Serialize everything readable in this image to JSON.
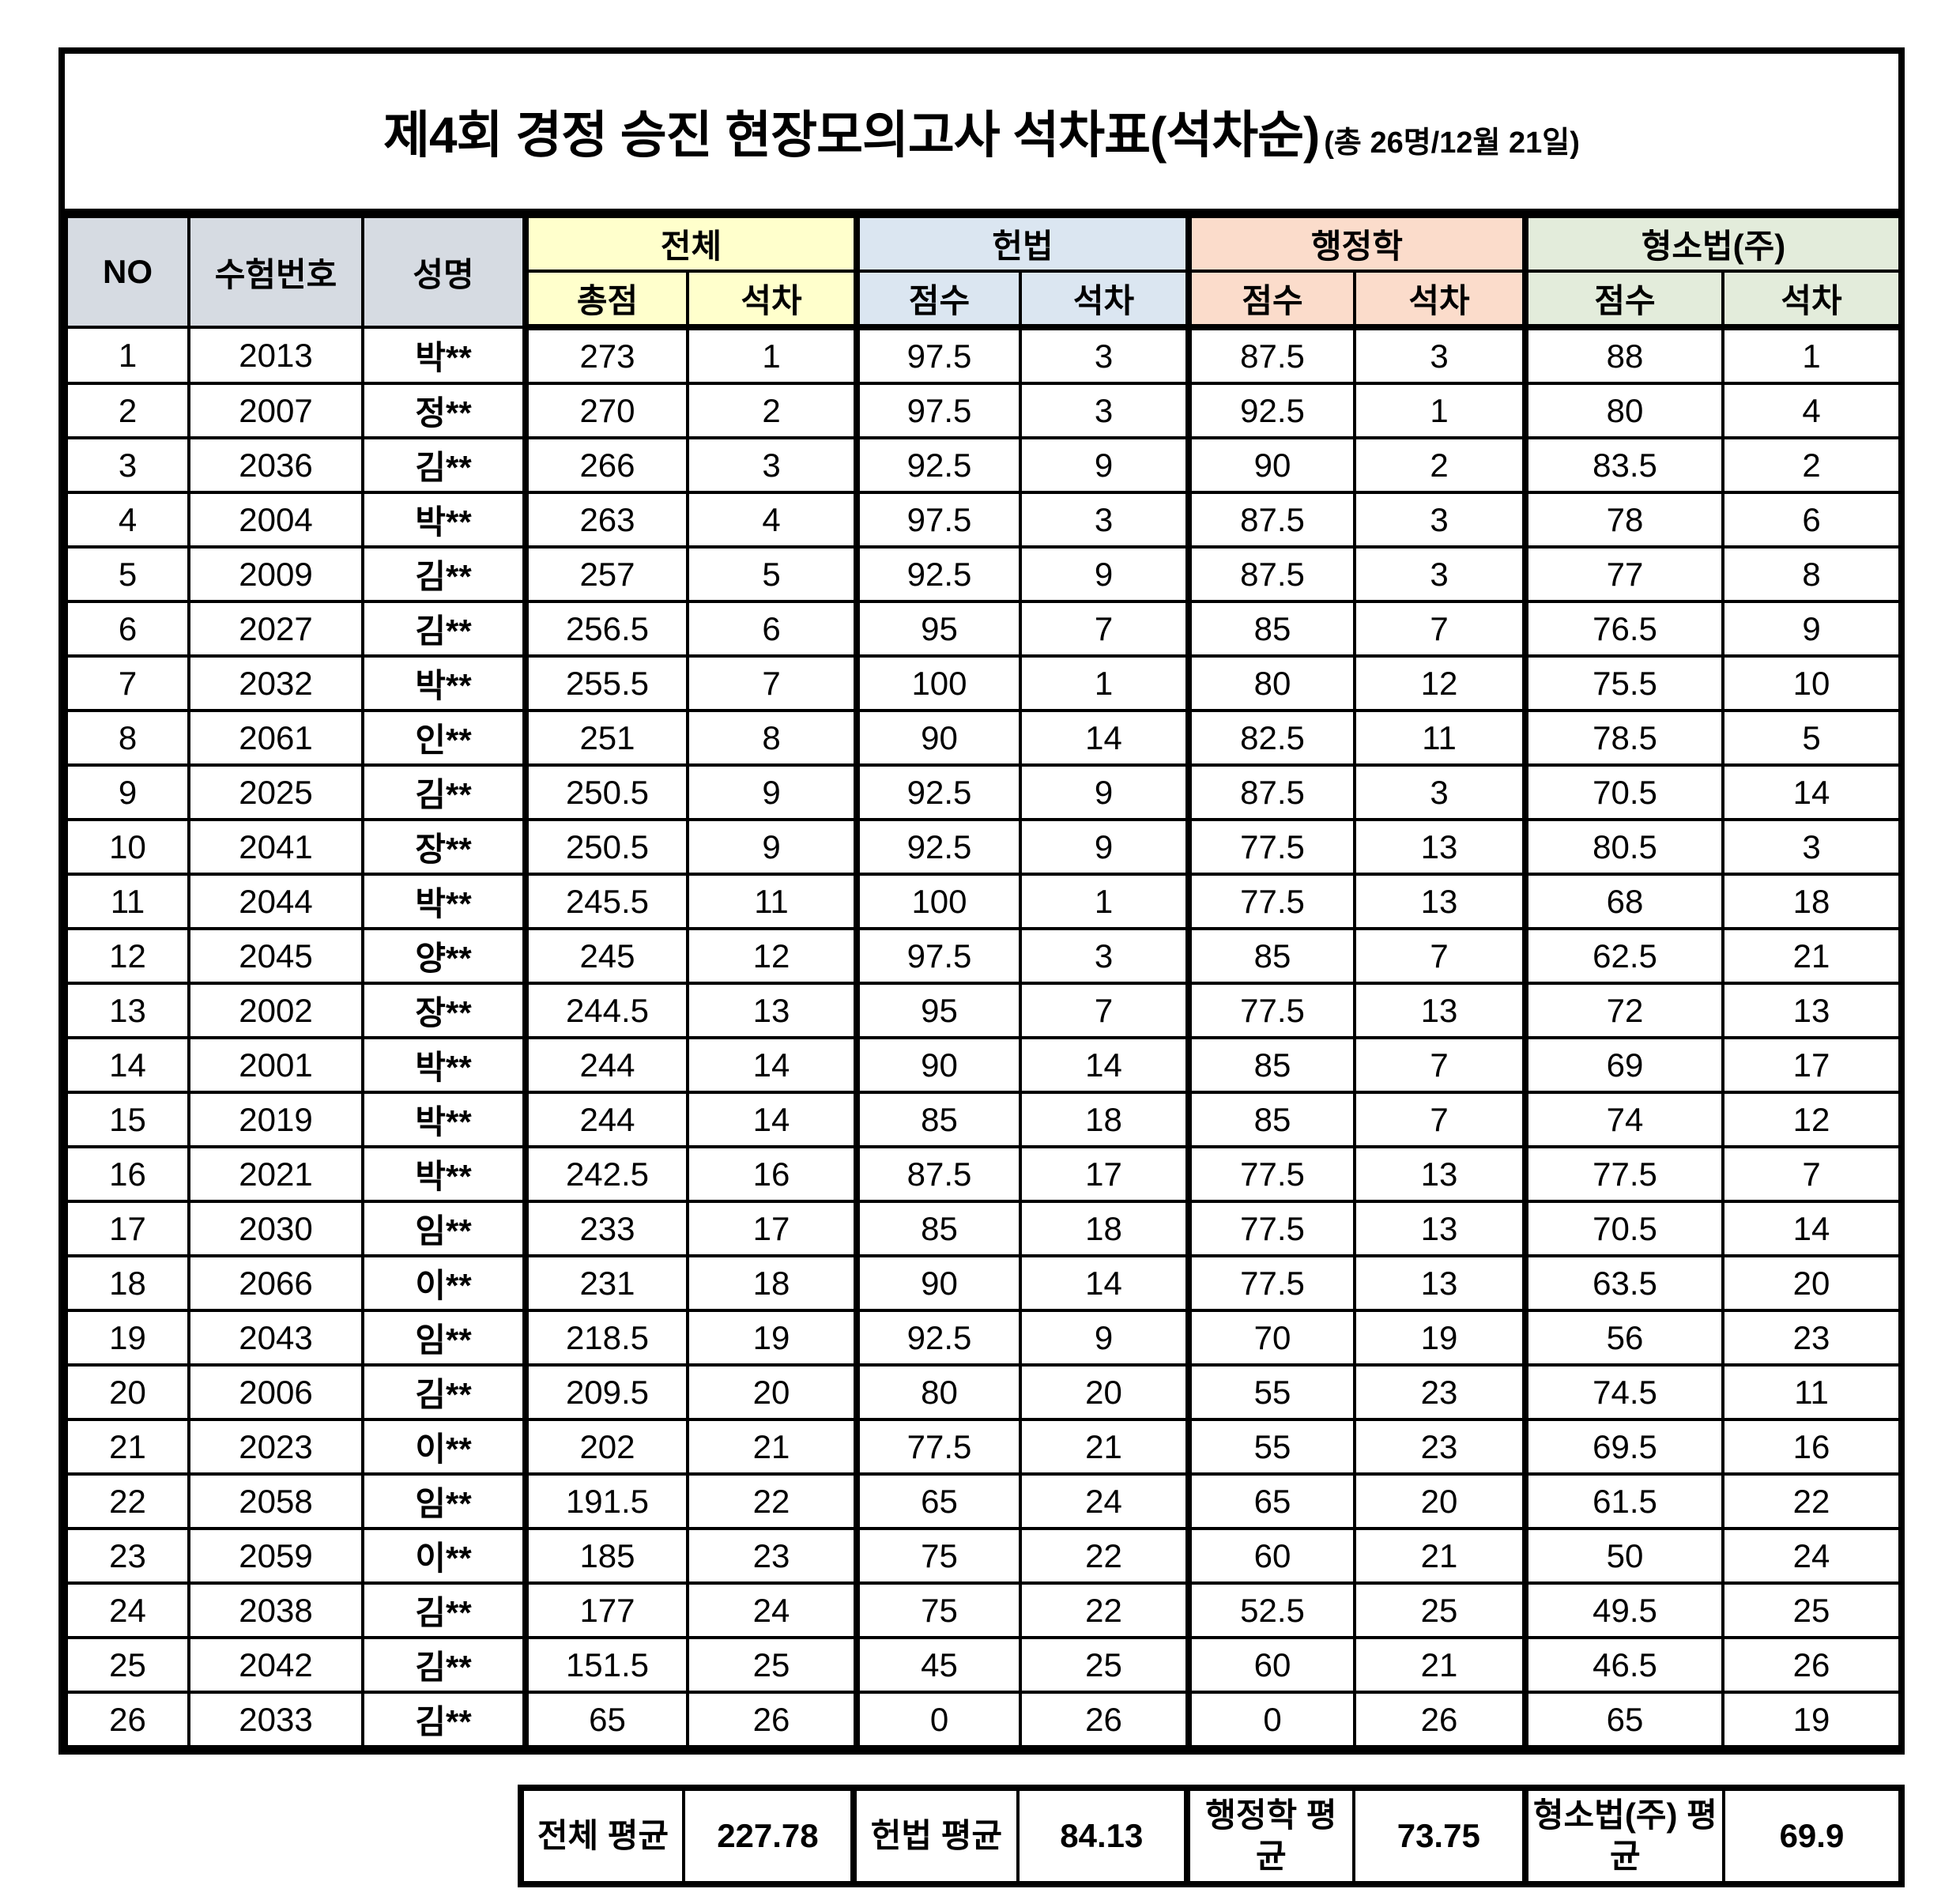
{
  "title": {
    "main": "제4회 경정 승진 현장모의고사 석차표(석차순)",
    "suffix": "(총 26명/12월 21일)"
  },
  "headers": {
    "no": "NO",
    "exam_no": "수험번호",
    "name": "성명"
  },
  "groups": [
    {
      "label": "전체",
      "color": "#ffffcc",
      "sub": [
        "총점",
        "석차"
      ]
    },
    {
      "label": "헌법",
      "color": "#dbe6f1",
      "sub": [
        "점수",
        "석차"
      ]
    },
    {
      "label": "행정학",
      "color": "#fbdccb",
      "sub": [
        "점수",
        "석차"
      ]
    },
    {
      "label": "형소법(주)",
      "color": "#e3ecdb",
      "sub": [
        "점수",
        "석차"
      ]
    }
  ],
  "header_gray_color": "#d6dbe2",
  "rows": [
    [
      "1",
      "2013",
      "박**",
      "273",
      "1",
      "97.5",
      "3",
      "87.5",
      "3",
      "88",
      "1"
    ],
    [
      "2",
      "2007",
      "정**",
      "270",
      "2",
      "97.5",
      "3",
      "92.5",
      "1",
      "80",
      "4"
    ],
    [
      "3",
      "2036",
      "김**",
      "266",
      "3",
      "92.5",
      "9",
      "90",
      "2",
      "83.5",
      "2"
    ],
    [
      "4",
      "2004",
      "박**",
      "263",
      "4",
      "97.5",
      "3",
      "87.5",
      "3",
      "78",
      "6"
    ],
    [
      "5",
      "2009",
      "김**",
      "257",
      "5",
      "92.5",
      "9",
      "87.5",
      "3",
      "77",
      "8"
    ],
    [
      "6",
      "2027",
      "김**",
      "256.5",
      "6",
      "95",
      "7",
      "85",
      "7",
      "76.5",
      "9"
    ],
    [
      "7",
      "2032",
      "박**",
      "255.5",
      "7",
      "100",
      "1",
      "80",
      "12",
      "75.5",
      "10"
    ],
    [
      "8",
      "2061",
      "인**",
      "251",
      "8",
      "90",
      "14",
      "82.5",
      "11",
      "78.5",
      "5"
    ],
    [
      "9",
      "2025",
      "김**",
      "250.5",
      "9",
      "92.5",
      "9",
      "87.5",
      "3",
      "70.5",
      "14"
    ],
    [
      "10",
      "2041",
      "장**",
      "250.5",
      "9",
      "92.5",
      "9",
      "77.5",
      "13",
      "80.5",
      "3"
    ],
    [
      "11",
      "2044",
      "박**",
      "245.5",
      "11",
      "100",
      "1",
      "77.5",
      "13",
      "68",
      "18"
    ],
    [
      "12",
      "2045",
      "양**",
      "245",
      "12",
      "97.5",
      "3",
      "85",
      "7",
      "62.5",
      "21"
    ],
    [
      "13",
      "2002",
      "장**",
      "244.5",
      "13",
      "95",
      "7",
      "77.5",
      "13",
      "72",
      "13"
    ],
    [
      "14",
      "2001",
      "박**",
      "244",
      "14",
      "90",
      "14",
      "85",
      "7",
      "69",
      "17"
    ],
    [
      "15",
      "2019",
      "박**",
      "244",
      "14",
      "85",
      "18",
      "85",
      "7",
      "74",
      "12"
    ],
    [
      "16",
      "2021",
      "박**",
      "242.5",
      "16",
      "87.5",
      "17",
      "77.5",
      "13",
      "77.5",
      "7"
    ],
    [
      "17",
      "2030",
      "임**",
      "233",
      "17",
      "85",
      "18",
      "77.5",
      "13",
      "70.5",
      "14"
    ],
    [
      "18",
      "2066",
      "이**",
      "231",
      "18",
      "90",
      "14",
      "77.5",
      "13",
      "63.5",
      "20"
    ],
    [
      "19",
      "2043",
      "임**",
      "218.5",
      "19",
      "92.5",
      "9",
      "70",
      "19",
      "56",
      "23"
    ],
    [
      "20",
      "2006",
      "김**",
      "209.5",
      "20",
      "80",
      "20",
      "55",
      "23",
      "74.5",
      "11"
    ],
    [
      "21",
      "2023",
      "이**",
      "202",
      "21",
      "77.5",
      "21",
      "55",
      "23",
      "69.5",
      "16"
    ],
    [
      "22",
      "2058",
      "임**",
      "191.5",
      "22",
      "65",
      "24",
      "65",
      "20",
      "61.5",
      "22"
    ],
    [
      "23",
      "2059",
      "이**",
      "185",
      "23",
      "75",
      "22",
      "60",
      "21",
      "50",
      "24"
    ],
    [
      "24",
      "2038",
      "김**",
      "177",
      "24",
      "75",
      "22",
      "52.5",
      "25",
      "49.5",
      "25"
    ],
    [
      "25",
      "2042",
      "김**",
      "151.5",
      "25",
      "45",
      "25",
      "60",
      "21",
      "46.5",
      "26"
    ],
    [
      "26",
      "2033",
      "김**",
      "65",
      "26",
      "0",
      "26",
      "0",
      "26",
      "65",
      "19"
    ]
  ],
  "summary": {
    "items": [
      {
        "label": "전체 평균",
        "value": "227.78"
      },
      {
        "label": "헌법 평균",
        "value": "84.13"
      },
      {
        "label": "행정학 평균",
        "value": "73.75"
      },
      {
        "label": "형소법(주) 평균",
        "value": "69.9"
      }
    ]
  }
}
